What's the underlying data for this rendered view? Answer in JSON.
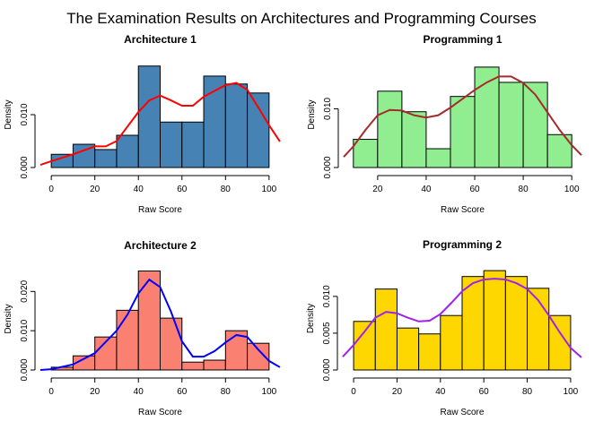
{
  "title": "The Examination Results on Architectures and Programming Courses",
  "chart_data": [
    {
      "type": "histogram",
      "title": "Architecture 1",
      "xlabel": "Raw Score",
      "ylabel": "Density",
      "bins": [
        0,
        10,
        20,
        30,
        40,
        50,
        60,
        70,
        80,
        90,
        100
      ],
      "values": [
        0.0025,
        0.0044,
        0.0034,
        0.0061,
        0.0192,
        0.0086,
        0.0086,
        0.0173,
        0.0158,
        0.0141
      ],
      "color": "#4682b4",
      "density": {
        "color": "#ff0000",
        "x": [
          -5,
          0,
          10,
          20,
          25,
          30,
          40,
          45,
          50,
          55,
          60,
          65,
          70,
          80,
          85,
          90,
          95,
          100,
          105
        ],
        "values": [
          0.0005,
          0.0012,
          0.0025,
          0.004,
          0.004,
          0.005,
          0.0105,
          0.0127,
          0.0136,
          0.0127,
          0.0117,
          0.0117,
          0.0134,
          0.0156,
          0.016,
          0.0147,
          0.0114,
          0.008,
          0.0049
        ]
      },
      "xlim": [
        -5,
        105
      ],
      "ylim": [
        0,
        0.02
      ],
      "xticks": [
        0,
        20,
        40,
        60,
        80,
        100
      ],
      "yticks": [
        {
          "value": 0,
          "label": "0.000"
        },
        {
          "value": 0.01,
          "label": "0.010"
        }
      ]
    },
    {
      "type": "histogram",
      "title": "Programming 1",
      "xlabel": "Raw Score",
      "ylabel": "Density",
      "bins": [
        10,
        20,
        30,
        40,
        50,
        60,
        70,
        80,
        90,
        100
      ],
      "values": [
        0.0048,
        0.013,
        0.0095,
        0.0032,
        0.0121,
        0.0171,
        0.0145,
        0.0145,
        0.0056
      ],
      "color": "#90ee90",
      "density": {
        "color": "#a52a2a",
        "x": [
          6,
          10,
          15,
          20,
          25,
          30,
          35,
          40,
          45,
          50,
          55,
          60,
          65,
          70,
          75,
          80,
          85,
          90,
          95,
          100,
          104
        ],
        "values": [
          0.0018,
          0.0036,
          0.0064,
          0.0089,
          0.0098,
          0.0097,
          0.0089,
          0.0085,
          0.0089,
          0.0102,
          0.0117,
          0.0132,
          0.0145,
          0.0155,
          0.0155,
          0.0144,
          0.0124,
          0.0094,
          0.0064,
          0.0038,
          0.0021
        ]
      },
      "xlim": [
        6,
        104
      ],
      "ylim": [
        0,
        0.018
      ],
      "xticks": [
        20,
        40,
        60,
        80,
        100
      ],
      "yticks": [
        {
          "value": 0,
          "label": "0.000"
        },
        {
          "value": 0.01,
          "label": "0.010"
        }
      ]
    },
    {
      "type": "histogram",
      "title": "Architecture 2",
      "xlabel": "Raw Score",
      "ylabel": "Density",
      "bins": [
        0,
        10,
        20,
        30,
        40,
        50,
        60,
        70,
        80,
        90,
        100
      ],
      "values": [
        0.0007,
        0.0036,
        0.0084,
        0.0152,
        0.0252,
        0.0132,
        0.002,
        0.0025,
        0.01,
        0.0068
      ],
      "color": "#fa8072",
      "density": {
        "color": "#0000ff",
        "x": [
          -5,
          0,
          10,
          20,
          30,
          35,
          40,
          45,
          50,
          55,
          60,
          65,
          70,
          75,
          80,
          85,
          90,
          95,
          100,
          105
        ],
        "values": [
          0,
          0.0002,
          0.0014,
          0.0043,
          0.01,
          0.0141,
          0.0195,
          0.023,
          0.0211,
          0.0148,
          0.0073,
          0.0034,
          0.0034,
          0.0048,
          0.007,
          0.0089,
          0.0084,
          0.0052,
          0.0023,
          0.0007
        ]
      },
      "xlim": [
        -5,
        105
      ],
      "ylim": [
        0,
        0.026
      ],
      "xticks": [
        0,
        20,
        40,
        60,
        80,
        100
      ],
      "yticks": [
        {
          "value": 0,
          "label": "0.000"
        },
        {
          "value": 0.01,
          "label": "0.010"
        },
        {
          "value": 0.02,
          "label": "0.020"
        }
      ]
    },
    {
      "type": "histogram",
      "title": "Programming 2",
      "xlabel": "Raw Score",
      "ylabel": "Density",
      "bins": [
        0,
        10,
        20,
        30,
        40,
        50,
        60,
        70,
        80,
        90,
        100
      ],
      "values": [
        0.0066,
        0.011,
        0.0057,
        0.0049,
        0.0074,
        0.0127,
        0.0135,
        0.0127,
        0.0111,
        0.0074
      ],
      "color": "#ffd700",
      "density": {
        "color": "#a020f0",
        "x": [
          -5,
          0,
          5,
          10,
          15,
          20,
          25,
          30,
          35,
          40,
          45,
          50,
          55,
          60,
          65,
          70,
          75,
          80,
          85,
          90,
          95,
          100,
          105
        ],
        "values": [
          0.0018,
          0.0034,
          0.0052,
          0.0071,
          0.0079,
          0.0077,
          0.0071,
          0.0066,
          0.0067,
          0.0076,
          0.0091,
          0.0107,
          0.0118,
          0.0123,
          0.0124,
          0.0123,
          0.0118,
          0.011,
          0.0095,
          0.0074,
          0.0051,
          0.003,
          0.0017
        ]
      },
      "xlim": [
        -5,
        105
      ],
      "ylim": [
        0,
        0.014
      ],
      "xticks": [
        0,
        20,
        40,
        60,
        80,
        100
      ],
      "yticks": [
        {
          "value": 0,
          "label": "0.000"
        },
        {
          "value": 0.005,
          "label": "0.005"
        },
        {
          "value": 0.01,
          "label": "0.010"
        }
      ]
    }
  ]
}
